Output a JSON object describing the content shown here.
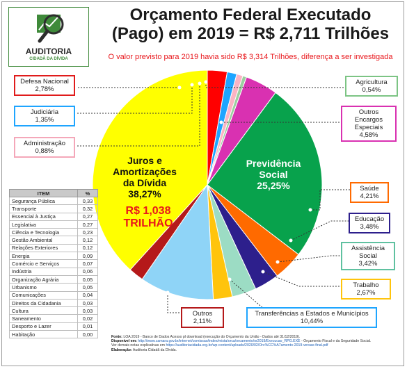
{
  "logo": {
    "name": "AUDITORIA",
    "tagline": "CIDADÃ DA DÍVIDA"
  },
  "title_line1": "Orçamento Federal Executado",
  "title_line2": "(Pago) em 2019 = R$ 2,711 Trilhões",
  "subtitle": "O valor previsto para 2019 havia sido R$ 3,314 Trilhões, diferença a ser investigada",
  "chart_data": {
    "type": "pie",
    "unit": "%",
    "slices": [
      {
        "name": "Juros e Amortizações da Dívida",
        "value": 38.27,
        "color": "#ffff00"
      },
      {
        "name": "Defesa Nacional",
        "value": 2.78,
        "color": "#ff0000"
      },
      {
        "name": "Judiciária",
        "value": 1.35,
        "color": "#1ea5ff"
      },
      {
        "name": "Administração",
        "value": 0.88,
        "color": "#fbb4c4"
      },
      {
        "name": "Agricultura",
        "value": 0.54,
        "color": "#9ccfa0"
      },
      {
        "name": "Outros Encargos Especiais",
        "value": 4.58,
        "color": "#d931b1"
      },
      {
        "name": "Previdência Social",
        "value": 25.25,
        "color": "#08a24c"
      },
      {
        "name": "Saúde",
        "value": 4.21,
        "color": "#ff6a00"
      },
      {
        "name": "Educação",
        "value": 3.48,
        "color": "#2d1f8c"
      },
      {
        "name": "Assistência Social",
        "value": 3.42,
        "color": "#9cdcc4"
      },
      {
        "name": "Trabalho",
        "value": 2.67,
        "color": "#ffc40c"
      },
      {
        "name": "Transferências a Estados e Municípios",
        "value": 10.44,
        "color": "#8fd4f7"
      },
      {
        "name": "Outros",
        "value": 2.11,
        "color": "#b5191a"
      }
    ],
    "inner_labels": {
      "juros_l1": "Juros e",
      "juros_l2": "Amortizações",
      "juros_l3": "da Dívida",
      "juros_pct": "38,27%",
      "juros_amount_l1": "R$ 1,038",
      "juros_amount_l2": "TRILHÃO",
      "prev_l1": "Previdência",
      "prev_l2": "Social",
      "prev_pct": "25,25%"
    },
    "callouts": {
      "defesa_name": "Defesa Nacional",
      "defesa_value": "2,78%",
      "judiciaria_name": "Judiciária",
      "judiciaria_value": "1,35%",
      "administracao_name": "Administração",
      "administracao_value": "0,88%",
      "agricultura_name": "Agricultura",
      "agricultura_value": "0,54%",
      "outros_encargos_l1": "Outros",
      "outros_encargos_l2": "Encargos",
      "outros_encargos_l3": "Especiais",
      "outros_encargos_value": "4,58%",
      "saude_name": "Saúde",
      "saude_value": "4,21%",
      "educacao_name": "Educação",
      "educacao_value": "3,48%",
      "assistencia_l1": "Assistência",
      "assistencia_l2": "Social",
      "assistencia_value": "3,42%",
      "trabalho_name": "Trabalho",
      "trabalho_value": "2,67%",
      "transferencias_name": "Transferências a Estados e Municípios",
      "transferencias_value": "10,44%",
      "outros_name": "Outros",
      "outros_value": "2,11%"
    }
  },
  "table": {
    "header_item": "ITEM",
    "header_pct": "%",
    "rows": [
      {
        "item": "Segurança Pública",
        "pct": "0,33"
      },
      {
        "item": "Transporte",
        "pct": "0,32"
      },
      {
        "item": "Essencial à Justiça",
        "pct": "0,27"
      },
      {
        "item": "Legislativa",
        "pct": "0,27"
      },
      {
        "item": "Ciência e Tecnologia",
        "pct": "0,23"
      },
      {
        "item": "Gestão Ambiental",
        "pct": "0,12"
      },
      {
        "item": "Relações Exteriores",
        "pct": "0,12"
      },
      {
        "item": "Energia",
        "pct": "0,09"
      },
      {
        "item": "Comércio e Serviços",
        "pct": "0,07"
      },
      {
        "item": "Indústria",
        "pct": "0,06"
      },
      {
        "item": "Organização Agrária",
        "pct": "0,05"
      },
      {
        "item": "Urbanismo",
        "pct": "0,05"
      },
      {
        "item": "Comunicações",
        "pct": "0,04"
      },
      {
        "item": "Direitos da Cidadania",
        "pct": "0,03"
      },
      {
        "item": "Cultura",
        "pct": "0,03"
      },
      {
        "item": "Saneamento",
        "pct": "0,02"
      },
      {
        "item": "Desporto e Lazer",
        "pct": "0,01"
      },
      {
        "item": "Habitação",
        "pct": "0,00"
      }
    ]
  },
  "footer": {
    "fonte_label": "Fonte:",
    "fonte_text": "LOA 2019 - Banco de Dados Acesso pl download (execução do Orçamento da União - Dados até 31/12/2019).",
    "disponivel_label": "Disponível em:",
    "disponivel_url": "http://www.camara.gov.br/internet/comissao/index/mista/orca/orcamento/or2019/Execucao_RPG.EXE",
    "disponivel_rest": "- Orçamento Fiscal e da Seguridade Social.",
    "ver_text": "Ver demais notas explicativas em",
    "ver_url": "https://auditoriacidada.org.br/wp-content/uploads/2020/02/Orc%CC%A7amento-2019-versao-final.pdf",
    "elab_label": "Elaboração:",
    "elab_text": "Auditoria Cidadã da Dívida."
  }
}
